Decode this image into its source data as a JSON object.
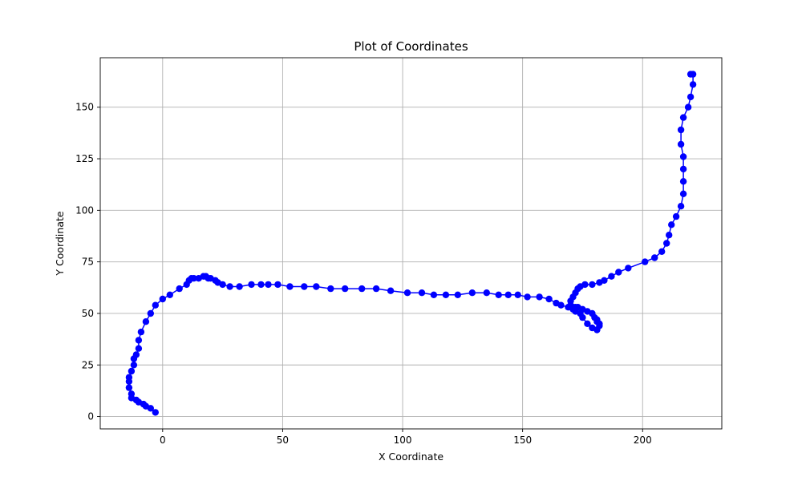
{
  "chart_data": {
    "type": "line",
    "title": "Plot of Coordinates",
    "xlabel": "X Coordinate",
    "ylabel": "Y Coordinate",
    "xlim": [
      -26,
      233
    ],
    "ylim": [
      -6,
      174
    ],
    "xticks": [
      0,
      50,
      100,
      150,
      200
    ],
    "yticks": [
      0,
      25,
      50,
      75,
      100,
      125,
      150
    ],
    "grid": true,
    "legend": "none",
    "marker": "circle",
    "series": [
      {
        "color": "#0000ff",
        "x": [
          -3,
          -5,
          -7,
          -8,
          -10,
          -11,
          -13,
          -13,
          -14,
          -14,
          -14,
          -13,
          -12,
          -12,
          -11,
          -10,
          -10,
          -9,
          -7,
          -5,
          -3,
          0,
          3,
          7,
          10,
          11,
          12,
          13,
          15,
          17,
          18,
          19,
          20,
          22,
          23,
          25,
          28,
          32,
          37,
          41,
          44,
          48,
          53,
          59,
          64,
          70,
          76,
          83,
          89,
          95,
          102,
          108,
          113,
          118,
          123,
          129,
          135,
          140,
          144,
          148,
          152,
          157,
          161,
          164,
          166,
          169,
          171,
          172,
          172,
          173,
          175,
          177,
          179,
          180,
          181,
          181,
          182,
          182,
          181,
          179,
          177,
          175,
          174,
          172,
          171,
          170,
          170,
          171,
          172,
          173,
          174,
          176,
          179,
          182,
          184,
          187,
          190,
          194,
          201,
          205,
          208,
          210,
          211,
          212,
          214,
          216,
          217,
          217,
          217,
          217,
          216,
          216,
          217,
          219,
          220,
          221,
          221,
          220
        ],
        "y": [
          2,
          4,
          5,
          6,
          7,
          8,
          9,
          11,
          14,
          17,
          19,
          22,
          25,
          28,
          30,
          33,
          37,
          41,
          46,
          50,
          54,
          57,
          59,
          62,
          64,
          66,
          67,
          67,
          67,
          68,
          68,
          67,
          67,
          66,
          65,
          64,
          63,
          63,
          64,
          64,
          64,
          64,
          63,
          63,
          63,
          62,
          62,
          62,
          62,
          61,
          60,
          60,
          59,
          59,
          59,
          60,
          60,
          59,
          59,
          59,
          58,
          58,
          57,
          55,
          54,
          53,
          52,
          52,
          53,
          53,
          52,
          51,
          50,
          48,
          47,
          46,
          45,
          44,
          42,
          43,
          45,
          48,
          50,
          51,
          53,
          54,
          56,
          58,
          60,
          62,
          63,
          64,
          64,
          65,
          66,
          68,
          70,
          72,
          75,
          77,
          80,
          84,
          88,
          93,
          97,
          102,
          108,
          114,
          120,
          126,
          132,
          139,
          145,
          150,
          155,
          161,
          166,
          166
        ]
      }
    ]
  }
}
